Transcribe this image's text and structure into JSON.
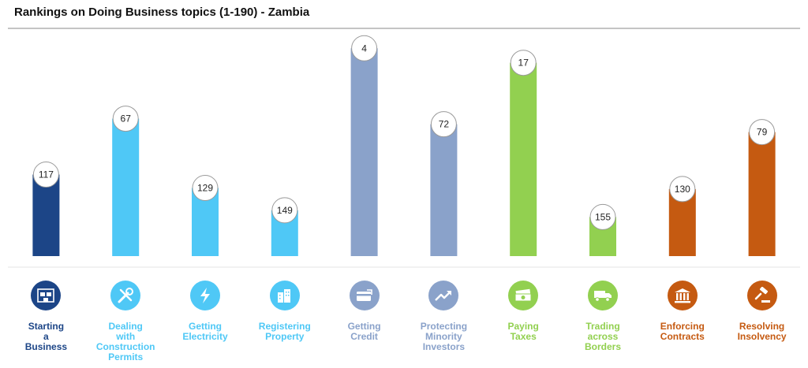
{
  "chart_data": {
    "type": "bar",
    "title": "Rankings on Doing Business topics (1-190) - Zambia",
    "xlabel": "",
    "ylabel": "",
    "ylim": [
      190,
      1
    ],
    "y_inverted": true,
    "grid": false,
    "legend": "none",
    "categories": [
      "Starting a Business",
      "Dealing with Construction Permits",
      "Getting Electricity",
      "Registering Property",
      "Getting Credit",
      "Protecting Minority Investors",
      "Paying Taxes",
      "Trading across Borders",
      "Enforcing Contracts",
      "Resolving Insolvency"
    ],
    "values": [
      117,
      67,
      129,
      149,
      4,
      72,
      17,
      155,
      130,
      79
    ]
  },
  "labels": [
    "Starting\na\nBusiness",
    "Dealing\nwith\nConstruction\nPermits",
    "Getting\nElectricity",
    "Registering\nProperty",
    "Getting\nCredit",
    "Protecting\nMinority\nInvestors",
    "Paying\nTaxes",
    "Trading\nacross\nBorders",
    "Enforcing\nContracts",
    "Resolving\nInsolvency"
  ],
  "colors": [
    "#1c4587",
    "#4fc8f6",
    "#4fc8f6",
    "#4fc8f6",
    "#8aa2ca",
    "#8aa2ca",
    "#92d050",
    "#92d050",
    "#c55a11",
    "#c55a11"
  ],
  "icons": [
    "business-building-icon",
    "tools-icon",
    "lightning-icon",
    "buildings-icon",
    "credit-card-icon",
    "trend-up-icon",
    "money-stack-icon",
    "truck-icon",
    "courthouse-icon",
    "gavel-icon"
  ]
}
